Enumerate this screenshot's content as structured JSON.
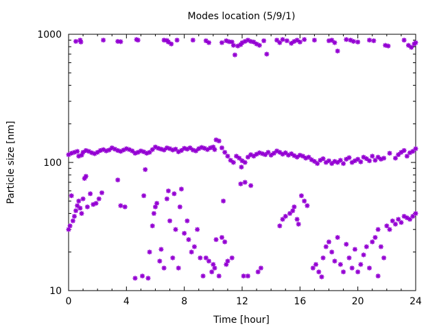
{
  "chart_data": {
    "type": "scatter",
    "title": "Modes location (5/9/1)",
    "xlabel": "Time [hour]",
    "ylabel": "Particle size [nm]",
    "xlim": [
      0,
      24
    ],
    "ylim": [
      10,
      1000
    ],
    "yscale": "log",
    "xticks": [
      0,
      4,
      8,
      12,
      16,
      20,
      24
    ],
    "xtick_labels": [
      "0",
      "4",
      "8",
      "12",
      "16",
      "20",
      "24"
    ],
    "yticks": [
      10,
      100,
      1000
    ],
    "ytick_labels": [
      "10",
      "100",
      "1000"
    ],
    "grid": false,
    "legend": "none",
    "marker_color": "#9400d3",
    "series": [
      {
        "points": [
          [
            0.5,
            880
          ],
          [
            0.8,
            900
          ],
          [
            0.85,
            870
          ],
          [
            2.4,
            900
          ],
          [
            3.4,
            880
          ],
          [
            3.6,
            875
          ],
          [
            4.7,
            910
          ],
          [
            4.8,
            900
          ],
          [
            6.6,
            900
          ],
          [
            6.8,
            895
          ],
          [
            6.9,
            870
          ],
          [
            7.1,
            840
          ],
          [
            7.5,
            900
          ],
          [
            8.6,
            900
          ],
          [
            9.5,
            890
          ],
          [
            9.7,
            860
          ],
          [
            10.6,
            860
          ],
          [
            10.9,
            890
          ],
          [
            11.1,
            875
          ],
          [
            11.3,
            870
          ],
          [
            11.4,
            820
          ],
          [
            11.5,
            690
          ],
          [
            11.7,
            810
          ],
          [
            11.9,
            830
          ],
          [
            12.0,
            860
          ],
          [
            12.2,
            880
          ],
          [
            12.4,
            900
          ],
          [
            12.6,
            880
          ],
          [
            12.8,
            870
          ],
          [
            13.0,
            840
          ],
          [
            13.2,
            820
          ],
          [
            13.5,
            890
          ],
          [
            13.7,
            700
          ],
          [
            14.4,
            900
          ],
          [
            14.6,
            860
          ],
          [
            14.8,
            910
          ],
          [
            15.1,
            890
          ],
          [
            15.4,
            850
          ],
          [
            15.6,
            880
          ],
          [
            15.8,
            900
          ],
          [
            16.0,
            870
          ],
          [
            16.3,
            910
          ],
          [
            17.0,
            900
          ],
          [
            18.0,
            890
          ],
          [
            18.2,
            900
          ],
          [
            18.4,
            860
          ],
          [
            18.6,
            740
          ],
          [
            19.2,
            910
          ],
          [
            19.5,
            900
          ],
          [
            19.7,
            880
          ],
          [
            20.0,
            870
          ],
          [
            20.8,
            900
          ],
          [
            21.1,
            890
          ],
          [
            21.9,
            820
          ],
          [
            22.1,
            810
          ],
          [
            23.2,
            900
          ],
          [
            23.5,
            820
          ],
          [
            23.7,
            790
          ],
          [
            23.9,
            840
          ],
          [
            24.0,
            860
          ]
        ]
      },
      {
        "points": [
          [
            0.0,
            115
          ],
          [
            0.2,
            118
          ],
          [
            0.4,
            120
          ],
          [
            0.6,
            122
          ],
          [
            0.7,
            112
          ],
          [
            0.9,
            114
          ],
          [
            1.0,
            120
          ],
          [
            1.2,
            124
          ],
          [
            1.4,
            122
          ],
          [
            1.6,
            119
          ],
          [
            1.8,
            117
          ],
          [
            2.0,
            120
          ],
          [
            2.2,
            124
          ],
          [
            2.4,
            126
          ],
          [
            2.6,
            123
          ],
          [
            2.8,
            125
          ],
          [
            3.0,
            130
          ],
          [
            3.2,
            127
          ],
          [
            3.4,
            124
          ],
          [
            3.6,
            122
          ],
          [
            3.8,
            125
          ],
          [
            4.0,
            128
          ],
          [
            4.2,
            126
          ],
          [
            4.4,
            123
          ],
          [
            4.6,
            118
          ],
          [
            4.8,
            120
          ],
          [
            5.0,
            123
          ],
          [
            5.2,
            121
          ],
          [
            5.4,
            118
          ],
          [
            5.6,
            120
          ],
          [
            5.8,
            126
          ],
          [
            6.0,
            132
          ],
          [
            6.2,
            129
          ],
          [
            6.4,
            127
          ],
          [
            6.6,
            125
          ],
          [
            6.8,
            130
          ],
          [
            7.0,
            128
          ],
          [
            7.2,
            125
          ],
          [
            7.4,
            127
          ],
          [
            7.6,
            121
          ],
          [
            7.8,
            124
          ],
          [
            8.0,
            129
          ],
          [
            8.2,
            127
          ],
          [
            8.4,
            130
          ],
          [
            8.6,
            125
          ],
          [
            8.8,
            123
          ],
          [
            9.0,
            128
          ],
          [
            9.2,
            131
          ],
          [
            9.4,
            129
          ],
          [
            9.6,
            126
          ],
          [
            9.8,
            130
          ],
          [
            10.0,
            132
          ],
          [
            10.1,
            126
          ],
          [
            10.2,
            150
          ],
          [
            10.4,
            147
          ],
          [
            10.6,
            130
          ],
          [
            10.8,
            120
          ],
          [
            11.0,
            112
          ],
          [
            11.2,
            104
          ],
          [
            11.4,
            100
          ],
          [
            11.6,
            112
          ],
          [
            11.8,
            108
          ],
          [
            12.0,
            103
          ],
          [
            12.2,
            100
          ],
          [
            12.4,
            110
          ],
          [
            12.6,
            115
          ],
          [
            12.8,
            112
          ],
          [
            13.0,
            116
          ],
          [
            13.2,
            119
          ],
          [
            13.4,
            117
          ],
          [
            13.6,
            115
          ],
          [
            13.8,
            120
          ],
          [
            14.0,
            114
          ],
          [
            14.2,
            118
          ],
          [
            14.4,
            123
          ],
          [
            14.6,
            120
          ],
          [
            14.8,
            116
          ],
          [
            15.0,
            119
          ],
          [
            15.2,
            114
          ],
          [
            15.4,
            117
          ],
          [
            15.6,
            113
          ],
          [
            15.8,
            110
          ],
          [
            16.0,
            114
          ],
          [
            16.2,
            112
          ],
          [
            16.4,
            108
          ],
          [
            16.6,
            110
          ],
          [
            16.8,
            105
          ],
          [
            17.0,
            102
          ],
          [
            17.2,
            98
          ],
          [
            17.4,
            104
          ],
          [
            17.6,
            107
          ],
          [
            17.8,
            100
          ],
          [
            18.0,
            103
          ],
          [
            18.2,
            98
          ],
          [
            18.4,
            102
          ],
          [
            18.6,
            100
          ],
          [
            18.8,
            104
          ],
          [
            19.0,
            98
          ],
          [
            19.2,
            106
          ],
          [
            19.4,
            109
          ],
          [
            19.6,
            100
          ],
          [
            19.8,
            103
          ],
          [
            20.0,
            106
          ],
          [
            20.2,
            101
          ],
          [
            20.4,
            110
          ],
          [
            20.6,
            107
          ],
          [
            20.8,
            103
          ],
          [
            21.0,
            112
          ],
          [
            21.2,
            104
          ],
          [
            21.4,
            110
          ],
          [
            21.6,
            106
          ],
          [
            21.8,
            108
          ],
          [
            22.2,
            118
          ],
          [
            22.6,
            108
          ],
          [
            22.8,
            115
          ],
          [
            23.0,
            120
          ],
          [
            23.2,
            124
          ],
          [
            23.4,
            112
          ],
          [
            23.6,
            119
          ],
          [
            23.8,
            122
          ],
          [
            24.0,
            128
          ]
        ]
      },
      {
        "points": [
          [
            0.0,
            30
          ],
          [
            0.1,
            32
          ],
          [
            0.2,
            55
          ],
          [
            0.3,
            35
          ],
          [
            0.4,
            38
          ],
          [
            0.5,
            42
          ],
          [
            0.6,
            46
          ],
          [
            0.7,
            50
          ],
          [
            0.8,
            44
          ],
          [
            0.9,
            40
          ],
          [
            1.0,
            52
          ],
          [
            1.1,
            75
          ],
          [
            1.2,
            78
          ],
          [
            1.3,
            45
          ],
          [
            1.5,
            57
          ],
          [
            1.7,
            47
          ],
          [
            1.9,
            48
          ],
          [
            2.1,
            52
          ],
          [
            2.3,
            58
          ],
          [
            3.4,
            73
          ],
          [
            3.6,
            46
          ],
          [
            3.9,
            45
          ],
          [
            4.6,
            12.5
          ],
          [
            5.1,
            13
          ],
          [
            5.2,
            55
          ],
          [
            5.3,
            88
          ],
          [
            5.5,
            12.5
          ],
          [
            5.6,
            20
          ],
          [
            5.8,
            32
          ],
          [
            5.9,
            40
          ],
          [
            6.0,
            45
          ],
          [
            6.1,
            48
          ],
          [
            6.3,
            17
          ],
          [
            6.4,
            21
          ],
          [
            6.6,
            15
          ],
          [
            6.8,
            52
          ],
          [
            6.9,
            60
          ],
          [
            7.0,
            35
          ],
          [
            7.2,
            18
          ],
          [
            7.3,
            57
          ],
          [
            7.4,
            30
          ],
          [
            7.6,
            15
          ],
          [
            7.7,
            45
          ],
          [
            7.8,
            62
          ],
          [
            8.0,
            28
          ],
          [
            8.2,
            35
          ],
          [
            8.3,
            25
          ],
          [
            8.5,
            20
          ],
          [
            8.7,
            22
          ],
          [
            8.9,
            30
          ],
          [
            9.1,
            18
          ],
          [
            9.3,
            13
          ],
          [
            9.5,
            18
          ],
          [
            9.7,
            17
          ],
          [
            9.9,
            14
          ],
          [
            10.0,
            16
          ],
          [
            10.1,
            15
          ],
          [
            10.2,
            25
          ],
          [
            10.4,
            13
          ],
          [
            10.6,
            26
          ],
          [
            10.7,
            50
          ],
          [
            10.8,
            24
          ],
          [
            10.9,
            16
          ],
          [
            11.0,
            17
          ],
          [
            11.3,
            18
          ],
          [
            11.9,
            68
          ],
          [
            11.95,
            92
          ],
          [
            12.1,
            13
          ],
          [
            12.2,
            70
          ],
          [
            12.4,
            13
          ],
          [
            12.6,
            66
          ],
          [
            13.1,
            14
          ],
          [
            13.3,
            15
          ],
          [
            14.6,
            32
          ],
          [
            14.8,
            36
          ],
          [
            15.0,
            38
          ],
          [
            15.3,
            40
          ],
          [
            15.5,
            42
          ],
          [
            15.6,
            45
          ],
          [
            15.8,
            36
          ],
          [
            15.9,
            33
          ],
          [
            16.1,
            55
          ],
          [
            16.3,
            50
          ],
          [
            16.5,
            46
          ],
          [
            16.9,
            15
          ],
          [
            17.1,
            16
          ],
          [
            17.3,
            14
          ],
          [
            17.5,
            12.8
          ],
          [
            17.6,
            18
          ],
          [
            17.8,
            22
          ],
          [
            18.0,
            24
          ],
          [
            18.2,
            20
          ],
          [
            18.4,
            17
          ],
          [
            18.6,
            26
          ],
          [
            18.8,
            16
          ],
          [
            19.0,
            14
          ],
          [
            19.2,
            23
          ],
          [
            19.4,
            18
          ],
          [
            19.6,
            15
          ],
          [
            19.8,
            21
          ],
          [
            20.0,
            14
          ],
          [
            20.2,
            16
          ],
          [
            20.4,
            19
          ],
          [
            20.6,
            22
          ],
          [
            20.8,
            15
          ],
          [
            21.0,
            24
          ],
          [
            21.2,
            26
          ],
          [
            21.4,
            30
          ],
          [
            21.6,
            22
          ],
          [
            21.8,
            18
          ],
          [
            22.0,
            32
          ],
          [
            22.2,
            30
          ],
          [
            22.4,
            35
          ],
          [
            22.6,
            33
          ],
          [
            22.8,
            36
          ],
          [
            23.0,
            34
          ],
          [
            23.2,
            38
          ],
          [
            23.4,
            37
          ],
          [
            23.6,
            36
          ],
          [
            23.8,
            38
          ],
          [
            24.0,
            40
          ],
          [
            21.4,
            13
          ]
        ]
      }
    ]
  }
}
